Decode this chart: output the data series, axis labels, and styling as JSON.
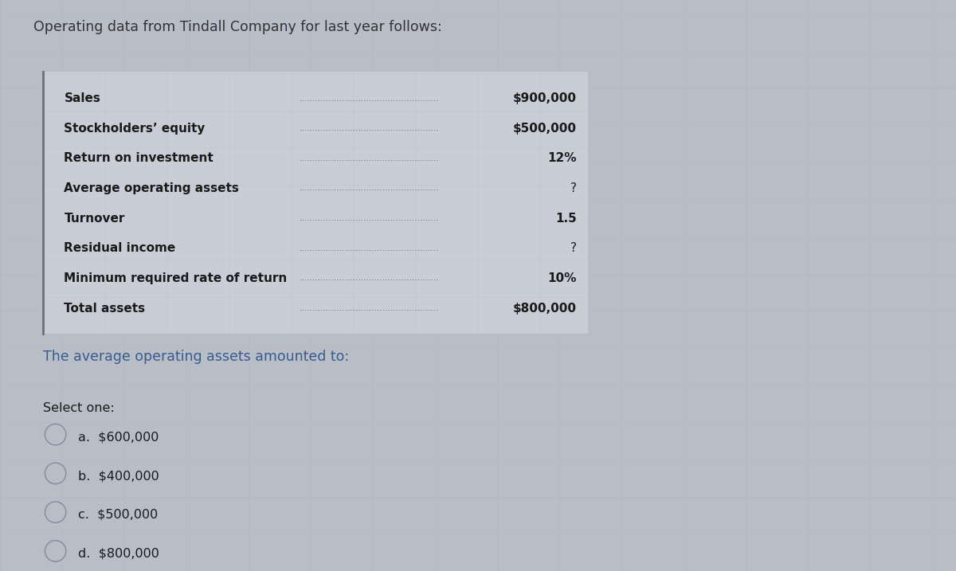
{
  "title": "Operating data from Tindall Company for last year follows:",
  "title_fontsize": 12.5,
  "title_color": "#333333",
  "bg_color": "#b8bec8",
  "table_bg_color": "#c8cdd6",
  "left_labels": [
    "Sales",
    "Stockholders’ equity",
    "Return on investment",
    "Average operating assets",
    "Turnover",
    "Residual income",
    "Minimum required rate of return",
    "Total assets"
  ],
  "right_values": [
    "$900,000",
    "$500,000",
    "12%",
    "?",
    "1.5",
    "?",
    "10%",
    "$800,000"
  ],
  "bold_labels": [
    true,
    true,
    true,
    true,
    true,
    true,
    true,
    true
  ],
  "question_text": "The average operating assets amounted to:",
  "question_color": "#3a5a8a",
  "select_text": "Select one:",
  "options": [
    "a.  $600,000",
    "b.  $400,000",
    "c.  $500,000",
    "d.  $800,000"
  ],
  "label_fontsize": 11.0,
  "value_fontsize": 11.0,
  "option_fontsize": 11.5,
  "question_fontsize": 12.5,
  "select_fontsize": 11.5,
  "dots_color": "#666666",
  "label_color": "#1a1a1a",
  "value_color": "#1a1a1a",
  "border_color": "#8a8fa0",
  "radio_edge_color": "#888899",
  "radio_face_color": "#b8bec8"
}
